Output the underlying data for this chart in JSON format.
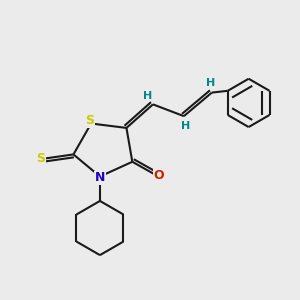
{
  "bg_color": "#ebebeb",
  "bond_color": "#1a1a1a",
  "S_color": "#cccc00",
  "N_color": "#2200cc",
  "O_color": "#cc2200",
  "H_color": "#008888",
  "bond_width": 1.5,
  "figsize": [
    3.0,
    3.0
  ],
  "dpi": 100,
  "xlim": [
    0,
    10
  ],
  "ylim": [
    0,
    10
  ],
  "font_size_atom": 9,
  "font_size_h": 8
}
